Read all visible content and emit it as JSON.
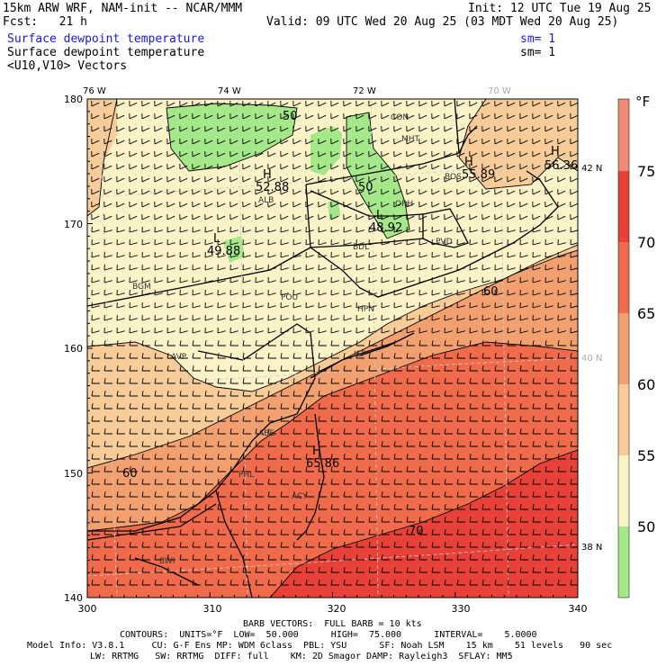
{
  "header": {
    "model": "15km ARW WRF, NAM-init -- NCAR/MMM",
    "fcst": "Fcst:   21 h",
    "init": "Init: 12 UTC Tue 19 Aug 25",
    "valid": "Valid: 09 UTC Wed 20 Aug 25 (03 MDT Wed 20 Aug 25)",
    "field1": "Surface dewpoint temperature",
    "field1_sm": "sm= 1",
    "field2": "Surface dewpoint temperature",
    "field2_sm": "sm= 1",
    "field3": "<U10,V10> Vectors"
  },
  "axes": {
    "top_lon_labels": [
      "76 W",
      "74 W",
      "72 W",
      "70 W"
    ],
    "right_lat_labels": [
      "42 N",
      "40 N",
      "38 N"
    ],
    "left_y_ticks": [
      "180",
      "170",
      "160",
      "150",
      "140"
    ],
    "bottom_x_ticks": [
      "300",
      "310",
      "320",
      "330",
      "340"
    ]
  },
  "colorbar": {
    "unit": "°F",
    "labels": [
      "75",
      "70",
      "65",
      "60",
      "55",
      "50"
    ],
    "colors": [
      "#f08a78",
      "#e8413a",
      "#f06a4c",
      "#f3a070",
      "#f8cc98",
      "#fbf2c8",
      "#a5e88a"
    ]
  },
  "map": {
    "contour_labels": [
      "50",
      "50",
      "60",
      "60",
      "70",
      "52.88",
      "49.88",
      "48.92",
      "55.89",
      "56.36",
      "65.86"
    ],
    "extrema": [
      "H",
      "H",
      "H",
      "H",
      "L",
      "L"
    ],
    "stations": [
      "CON",
      "MHT",
      "ALB",
      "ORH",
      "BOS",
      "PVD",
      "BDL",
      "BGM",
      "POU",
      "HPN",
      "AVP",
      "ISP",
      "ABE",
      "PHL",
      "ACY",
      "BWI"
    ]
  },
  "footer": {
    "barb": "BARB VECTORS:  FULL BARB = 10 kts",
    "contours": "CONTOURS:  UNITS=°F  LOW=  50.000      HIGH=  75.000      INTERVAL=    5.0000",
    "model_info": "Model Info: V3.8.1     CU: G-F Ens MP: WDM 6class  PBL: YSU      SF: Noah LSM    15 km    51 levels   90 sec",
    "physics": "LW: RRTMG   SW: RRTMG  DIFF: full    KM: 2D Smagor DAMP: Rayleigh3  SFLAY: MM5"
  }
}
